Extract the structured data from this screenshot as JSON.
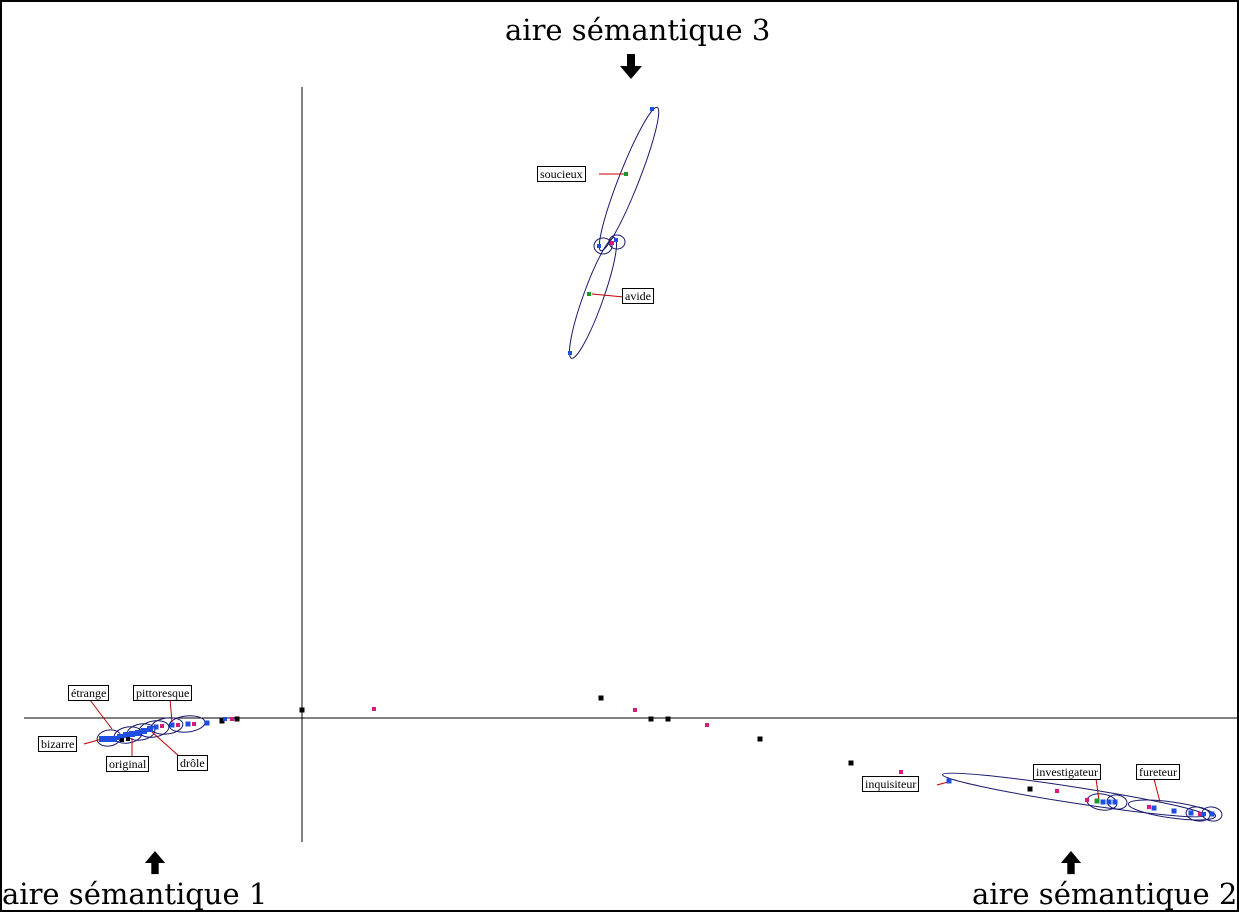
{
  "area_labels": {
    "area1": "aire sémantique 1",
    "area2": "aire sémantique 2",
    "area3": "aire sémantique 3"
  },
  "word_labels": {
    "etrange": "étrange",
    "pittoresque": "pittoresque",
    "bizarre": "bizarre",
    "original": "original",
    "drole": "drôle",
    "soucieux": "soucieux",
    "avide": "avide",
    "inquisiteur": "inquisiteur",
    "investigateur": "investigateur",
    "fureteur": "fureteur"
  },
  "colors": {
    "blue_points": "#1f4fe0",
    "pink_points": "#d81b7a",
    "black_points": "#000000",
    "green_points": "#1a9a2a",
    "leader_lines": "#c00000",
    "ellipses": "#1a1a6e",
    "axes": "#000000"
  }
}
